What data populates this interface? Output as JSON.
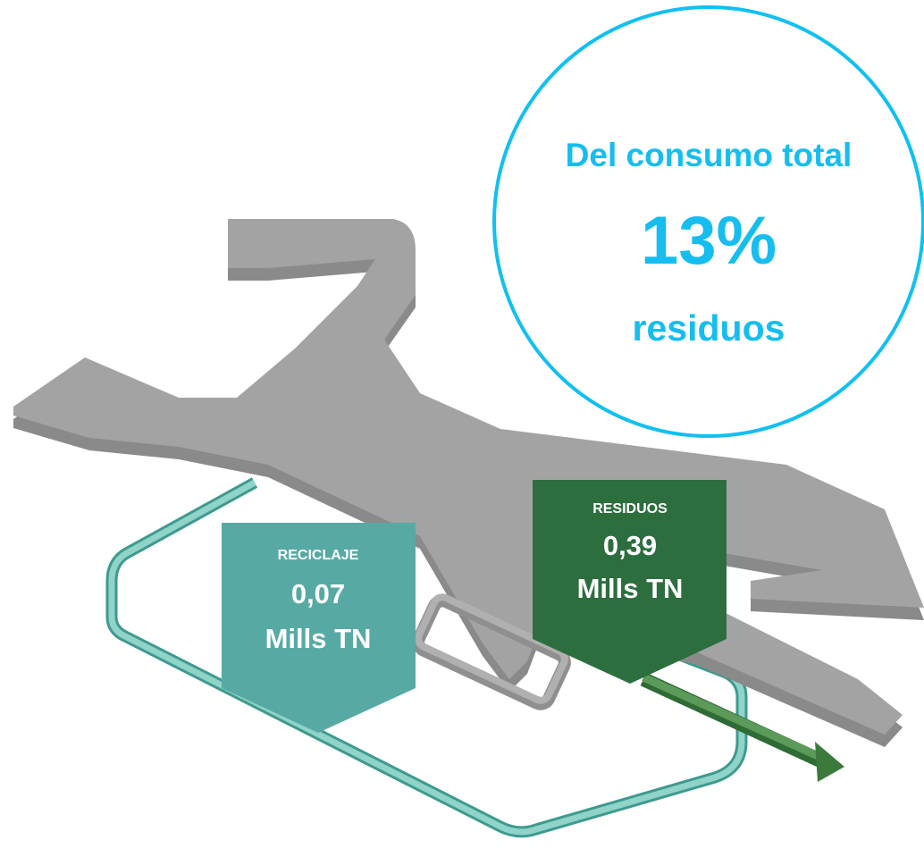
{
  "callout": {
    "line1": "Del consumo total",
    "value": "13%",
    "line2": "residuos"
  },
  "labels": [
    {
      "title": "RECICLAJE",
      "value": "0,07",
      "unit": "Mills TN"
    },
    {
      "title": "RESIDUOS",
      "value": "0,39",
      "unit": "Mills TN"
    }
  ]
}
